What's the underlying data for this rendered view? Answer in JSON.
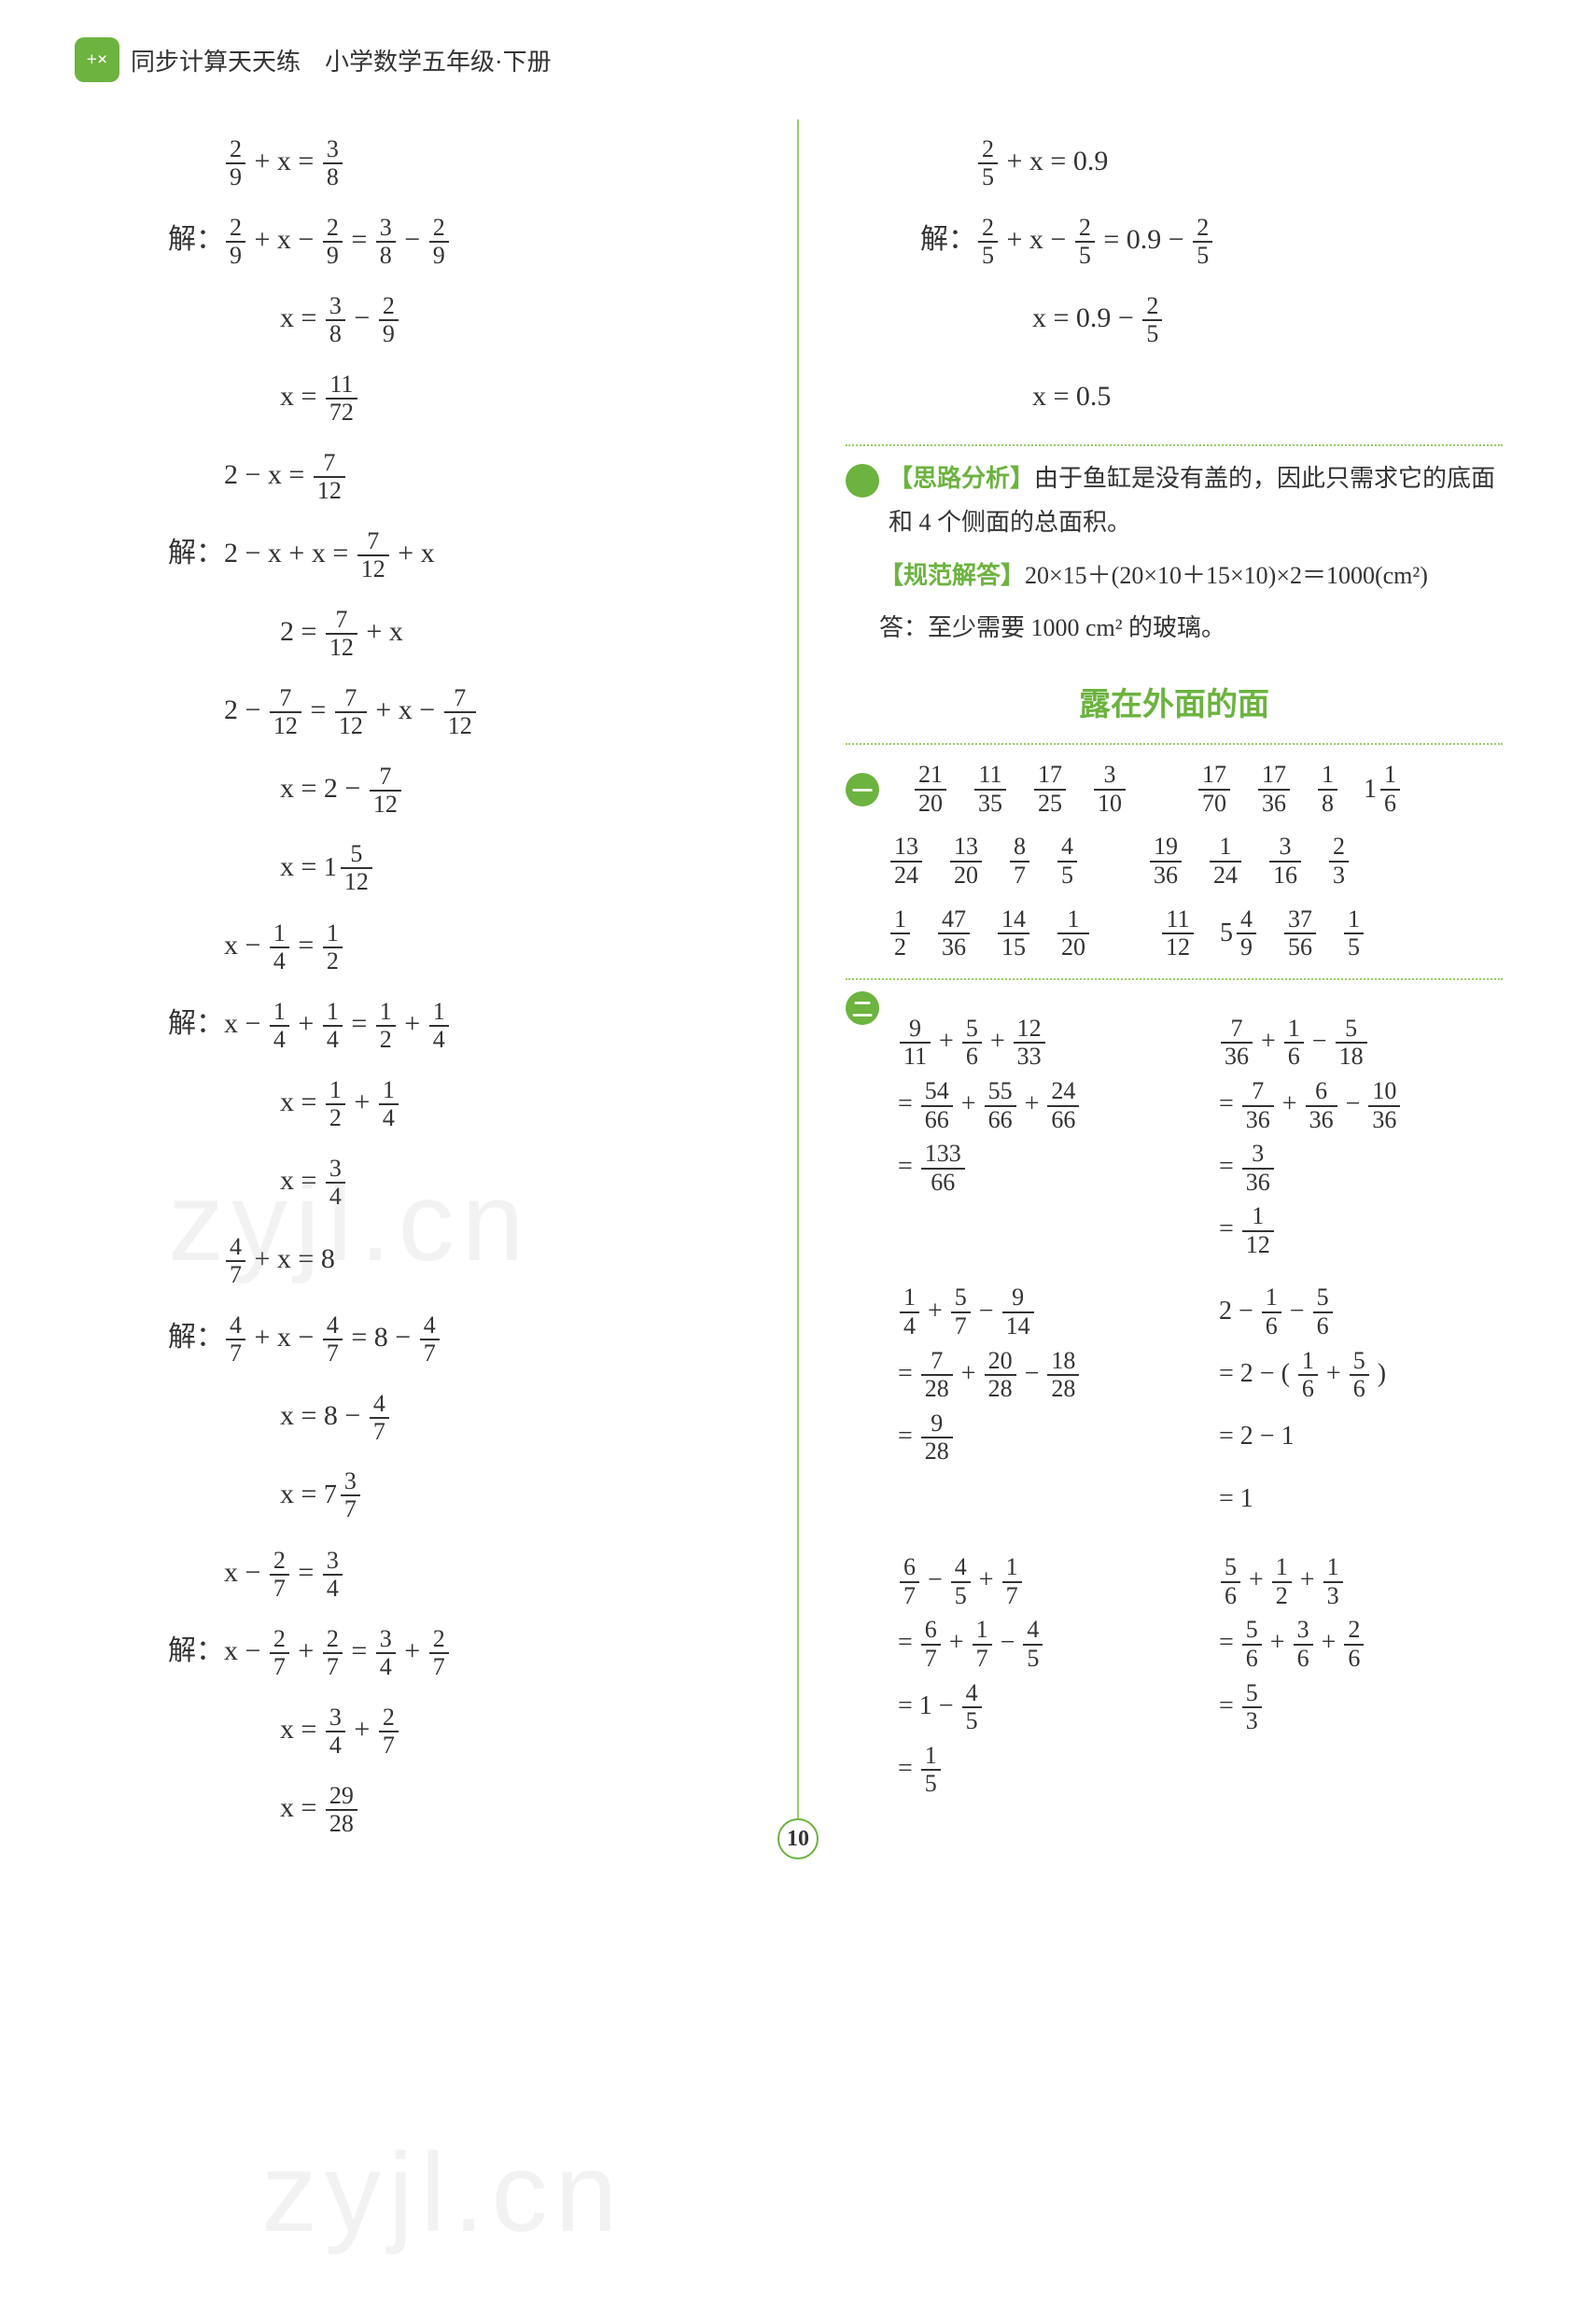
{
  "header": {
    "icon_glyph": "+×",
    "title": "同步计算天天练　小学数学五年级·下册"
  },
  "left_equations": [
    {
      "cls": "indent2",
      "parts": [
        {
          "f": "2/9"
        },
        {
          "t": " + x = "
        },
        {
          "f": "3/8"
        }
      ]
    },
    {
      "cls": "indent1",
      "parts": [
        {
          "t": "解："
        },
        {
          "f": "2/9"
        },
        {
          "t": " + x − "
        },
        {
          "f": "2/9"
        },
        {
          "t": " = "
        },
        {
          "f": "3/8"
        },
        {
          "t": " − "
        },
        {
          "f": "2/9"
        }
      ]
    },
    {
      "cls": "indent3",
      "parts": [
        {
          "t": "x = "
        },
        {
          "f": "3/8"
        },
        {
          "t": " − "
        },
        {
          "f": "2/9"
        }
      ]
    },
    {
      "cls": "indent3",
      "parts": [
        {
          "t": "x = "
        },
        {
          "f": "11/72"
        }
      ]
    },
    {
      "cls": "indent2",
      "parts": [
        {
          "t": "2 − x = "
        },
        {
          "f": "7/12"
        }
      ]
    },
    {
      "cls": "indent1",
      "parts": [
        {
          "t": "解：2 − x + x = "
        },
        {
          "f": "7/12"
        },
        {
          "t": " + x"
        }
      ]
    },
    {
      "cls": "indent3",
      "parts": [
        {
          "t": "2 = "
        },
        {
          "f": "7/12"
        },
        {
          "t": " + x"
        }
      ]
    },
    {
      "cls": "indent2",
      "parts": [
        {
          "t": "2 − "
        },
        {
          "f": "7/12"
        },
        {
          "t": " = "
        },
        {
          "f": "7/12"
        },
        {
          "t": " + x − "
        },
        {
          "f": "7/12"
        }
      ]
    },
    {
      "cls": "indent3",
      "parts": [
        {
          "t": "x = 2 − "
        },
        {
          "f": "7/12"
        }
      ]
    },
    {
      "cls": "indent3",
      "parts": [
        {
          "t": "x = "
        },
        {
          "m": "1 5/12"
        }
      ]
    },
    {
      "cls": "indent2",
      "parts": [
        {
          "t": "x − "
        },
        {
          "f": "1/4"
        },
        {
          "t": " = "
        },
        {
          "f": "1/2"
        }
      ]
    },
    {
      "cls": "indent1",
      "parts": [
        {
          "t": "解：x − "
        },
        {
          "f": "1/4"
        },
        {
          "t": " + "
        },
        {
          "f": "1/4"
        },
        {
          "t": " = "
        },
        {
          "f": "1/2"
        },
        {
          "t": " + "
        },
        {
          "f": "1/4"
        }
      ]
    },
    {
      "cls": "indent3",
      "parts": [
        {
          "t": "x = "
        },
        {
          "f": "1/2"
        },
        {
          "t": " + "
        },
        {
          "f": "1/4"
        }
      ]
    },
    {
      "cls": "indent3",
      "parts": [
        {
          "t": "x = "
        },
        {
          "f": "3/4"
        }
      ]
    },
    {
      "cls": "indent2",
      "parts": [
        {
          "f": "4/7"
        },
        {
          "t": " + x = 8"
        }
      ]
    },
    {
      "cls": "indent1",
      "parts": [
        {
          "t": "解："
        },
        {
          "f": "4/7"
        },
        {
          "t": " + x − "
        },
        {
          "f": "4/7"
        },
        {
          "t": " = 8 − "
        },
        {
          "f": "4/7"
        }
      ]
    },
    {
      "cls": "indent3",
      "parts": [
        {
          "t": "x = 8 − "
        },
        {
          "f": "4/7"
        }
      ]
    },
    {
      "cls": "indent3",
      "parts": [
        {
          "t": "x = "
        },
        {
          "m": "7 3/7"
        }
      ]
    },
    {
      "cls": "indent2",
      "parts": [
        {
          "t": "x − "
        },
        {
          "f": "2/7"
        },
        {
          "t": " = "
        },
        {
          "f": "3/4"
        }
      ]
    },
    {
      "cls": "indent1",
      "parts": [
        {
          "t": "解：x − "
        },
        {
          "f": "2/7"
        },
        {
          "t": " + "
        },
        {
          "f": "2/7"
        },
        {
          "t": " = "
        },
        {
          "f": "3/4"
        },
        {
          "t": " + "
        },
        {
          "f": "2/7"
        }
      ]
    },
    {
      "cls": "indent3",
      "parts": [
        {
          "t": "x = "
        },
        {
          "f": "3/4"
        },
        {
          "t": " + "
        },
        {
          "f": "2/7"
        }
      ]
    },
    {
      "cls": "indent3",
      "parts": [
        {
          "t": "x = "
        },
        {
          "f": "29/28"
        }
      ]
    }
  ],
  "right_top_equations": [
    {
      "cls": "indent2",
      "parts": [
        {
          "f": "2/5"
        },
        {
          "t": " + x = 0.9"
        }
      ]
    },
    {
      "cls": "indent1",
      "parts": [
        {
          "t": "解："
        },
        {
          "f": "2/5"
        },
        {
          "t": " + x − "
        },
        {
          "f": "2/5"
        },
        {
          "t": " = 0.9 − "
        },
        {
          "f": "2/5"
        }
      ]
    },
    {
      "cls": "indent3",
      "parts": [
        {
          "t": "x = 0.9 − "
        },
        {
          "f": "2/5"
        }
      ]
    },
    {
      "cls": "indent3",
      "parts": [
        {
          "t": "x = 0.5"
        }
      ]
    }
  ],
  "analysis": {
    "badge": "三",
    "think_label": "【思路分析】",
    "think_text": "由于鱼缸是没有盖的，因此只需求它的底面和 4 个侧面的总面积。",
    "answer_label": "【规范解答】",
    "answer_text": "20×15＋(20×10＋15×10)×2＝1000(cm²)",
    "final": "答：至少需要 1000 cm² 的玻璃。"
  },
  "section_title": "露在外面的面",
  "frac_grid": {
    "badge": "一",
    "rows": [
      [
        {
          "f": "21/20"
        },
        {
          "f": "11/35"
        },
        {
          "f": "17/25"
        },
        {
          "f": "3/10"
        },
        {
          "gap": true
        },
        {
          "f": "17/70"
        },
        {
          "f": "17/36"
        },
        {
          "f": "1/8"
        },
        {
          "m": "1 1/6"
        }
      ],
      [
        {
          "f": "13/24"
        },
        {
          "f": "13/20"
        },
        {
          "f": "8/7"
        },
        {
          "f": "4/5"
        },
        {
          "gap": true
        },
        {
          "f": "19/36"
        },
        {
          "f": "1/24"
        },
        {
          "f": "3/16"
        },
        {
          "f": "2/3"
        }
      ],
      [
        {
          "f": "1/2"
        },
        {
          "f": "47/36"
        },
        {
          "f": "14/15"
        },
        {
          "f": "1/20"
        },
        {
          "gap": true
        },
        {
          "f": "11/12"
        },
        {
          "m": "5 4/9"
        },
        {
          "f": "37/56"
        },
        {
          "f": "1/5"
        }
      ]
    ]
  },
  "worked": {
    "badge": "二",
    "pairs": [
      {
        "left": [
          [
            {
              "f": "9/11"
            },
            {
              "t": " + "
            },
            {
              "f": "5/6"
            },
            {
              "t": " + "
            },
            {
              "f": "12/33"
            }
          ],
          [
            {
              "t": "= "
            },
            {
              "f": "54/66"
            },
            {
              "t": " + "
            },
            {
              "f": "55/66"
            },
            {
              "t": " + "
            },
            {
              "f": "24/66"
            }
          ],
          [
            {
              "t": "= "
            },
            {
              "f": "133/66"
            }
          ]
        ],
        "right": [
          [
            {
              "f": "7/36"
            },
            {
              "t": " + "
            },
            {
              "f": "1/6"
            },
            {
              "t": " − "
            },
            {
              "f": "5/18"
            }
          ],
          [
            {
              "t": "= "
            },
            {
              "f": "7/36"
            },
            {
              "t": " + "
            },
            {
              "f": "6/36"
            },
            {
              "t": " − "
            },
            {
              "f": "10/36"
            }
          ],
          [
            {
              "t": "= "
            },
            {
              "f": "3/36"
            }
          ],
          [
            {
              "t": "= "
            },
            {
              "f": "1/12"
            }
          ]
        ]
      },
      {
        "left": [
          [
            {
              "f": "1/4"
            },
            {
              "t": " + "
            },
            {
              "f": "5/7"
            },
            {
              "t": " − "
            },
            {
              "f": "9/14"
            }
          ],
          [
            {
              "t": "= "
            },
            {
              "f": "7/28"
            },
            {
              "t": " + "
            },
            {
              "f": "20/28"
            },
            {
              "t": " − "
            },
            {
              "f": "18/28"
            }
          ],
          [
            {
              "t": "= "
            },
            {
              "f": "9/28"
            }
          ]
        ],
        "right": [
          [
            {
              "t": "2 − "
            },
            {
              "f": "1/6"
            },
            {
              "t": " − "
            },
            {
              "f": "5/6"
            }
          ],
          [
            {
              "t": "= 2 − ( "
            },
            {
              "f": "1/6"
            },
            {
              "t": " + "
            },
            {
              "f": "5/6"
            },
            {
              "t": " )"
            }
          ],
          [
            {
              "t": "= 2 − 1"
            }
          ],
          [
            {
              "t": "= 1"
            }
          ]
        ]
      },
      {
        "left": [
          [
            {
              "f": "6/7"
            },
            {
              "t": " − "
            },
            {
              "f": "4/5"
            },
            {
              "t": " + "
            },
            {
              "f": "1/7"
            }
          ],
          [
            {
              "t": "= "
            },
            {
              "f": "6/7"
            },
            {
              "t": " + "
            },
            {
              "f": "1/7"
            },
            {
              "t": " − "
            },
            {
              "f": "4/5"
            }
          ],
          [
            {
              "t": "= 1 − "
            },
            {
              "f": "4/5"
            }
          ],
          [
            {
              "t": "= "
            },
            {
              "f": "1/5"
            }
          ]
        ],
        "right": [
          [
            {
              "f": "5/6"
            },
            {
              "t": " + "
            },
            {
              "f": "1/2"
            },
            {
              "t": " + "
            },
            {
              "f": "1/3"
            }
          ],
          [
            {
              "t": "= "
            },
            {
              "f": "5/6"
            },
            {
              "t": " + "
            },
            {
              "f": "3/6"
            },
            {
              "t": " + "
            },
            {
              "f": "2/6"
            }
          ],
          [
            {
              "t": "= "
            },
            {
              "f": "5/3"
            }
          ]
        ]
      }
    ]
  },
  "page_number": "10",
  "watermark": "zyjl.cn"
}
